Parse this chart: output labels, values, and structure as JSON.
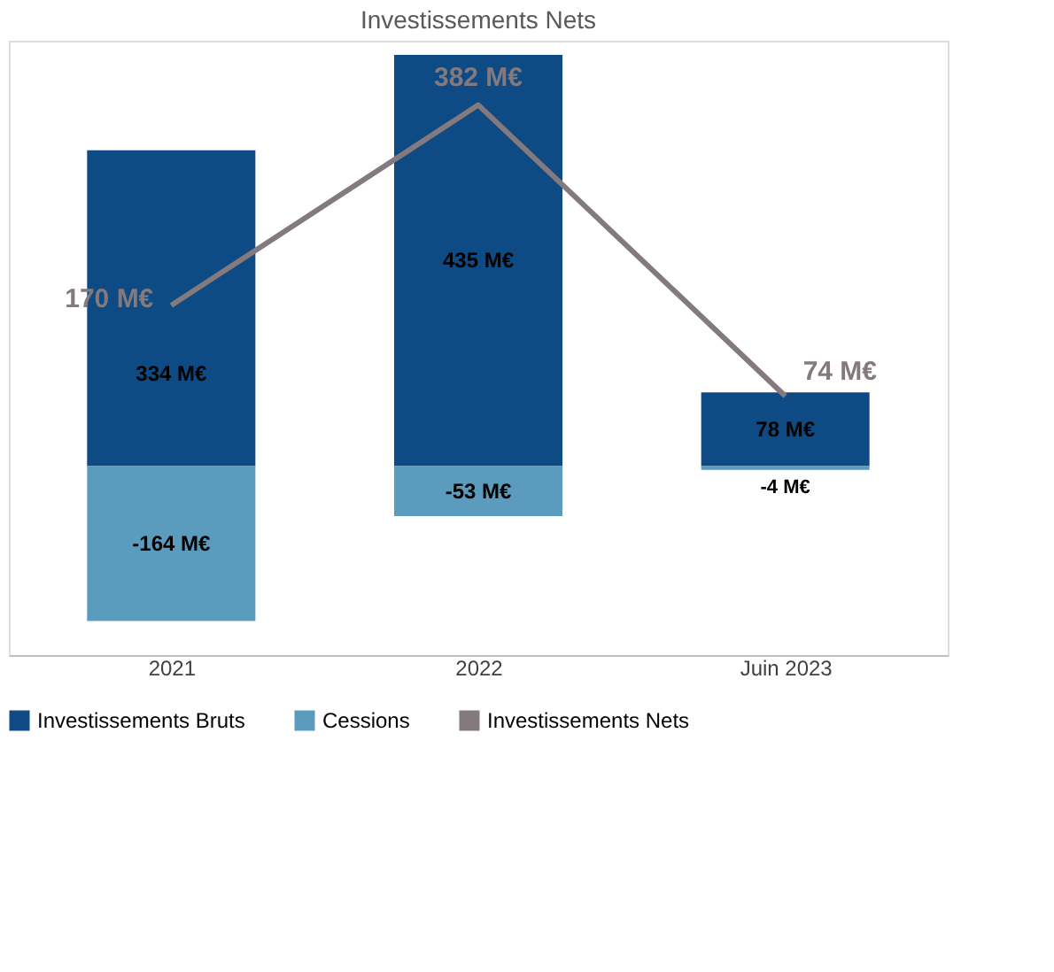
{
  "chart_data": {
    "type": "bar",
    "title": "Investissements Nets",
    "categories": [
      "2021",
      "2022",
      "Juin 2023"
    ],
    "stacked": true,
    "series": [
      {
        "name": "Investissements Bruts",
        "color": "#0e4a84",
        "values": [
          334,
          435,
          78
        ],
        "value_labels": [
          "334 M€",
          "435 M€",
          "78 M€"
        ]
      },
      {
        "name": "Cessions",
        "color": "#5b9bbd",
        "values": [
          -164,
          -53,
          -4
        ],
        "value_labels": [
          "-164 M€",
          "-53 M€",
          "-4 M€"
        ]
      },
      {
        "name": "Investissements Nets",
        "type": "line",
        "color": "#847a7d",
        "values": [
          170,
          382,
          74
        ],
        "value_labels": [
          "170 M€",
          "382 M€",
          "74 M€"
        ]
      }
    ],
    "legend": "bottom",
    "grid": false
  }
}
